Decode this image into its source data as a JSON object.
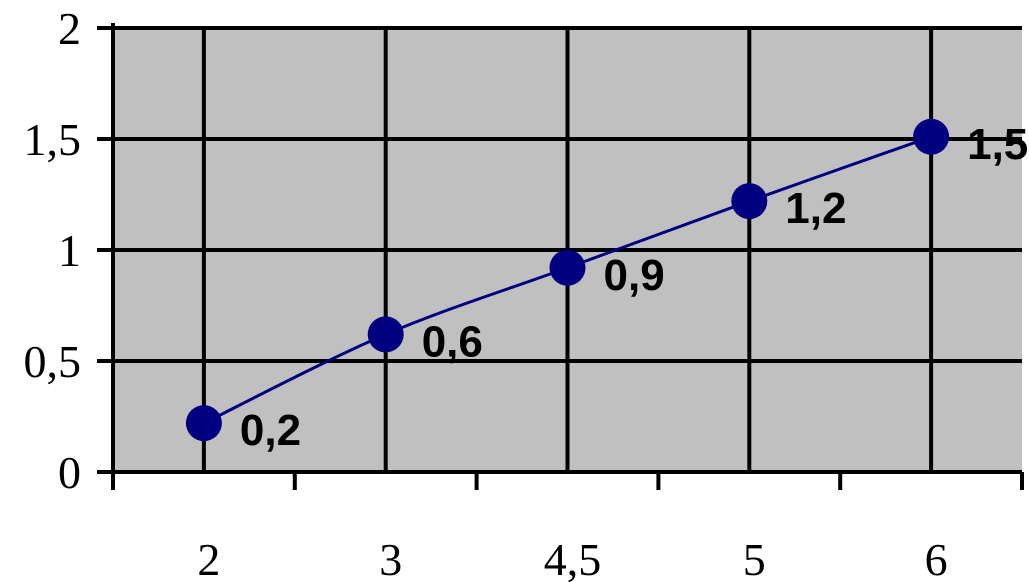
{
  "chart_data": {
    "type": "line",
    "categories": [
      "2",
      "3",
      "4,5",
      "5",
      "6"
    ],
    "values": [
      0.22,
      0.62,
      0.92,
      1.22,
      1.51
    ],
    "data_labels": [
      "0,2",
      "0,6",
      "0,9",
      "1,2",
      "1,5"
    ],
    "y_ticks": [
      {
        "value": 0,
        "label": "0"
      },
      {
        "value": 0.5,
        "label": "0,5"
      },
      {
        "value": 1,
        "label": "1"
      },
      {
        "value": 1.5,
        "label": "1,5"
      },
      {
        "value": 2,
        "label": "2"
      }
    ],
    "ylim": [
      0,
      2
    ],
    "grid": true,
    "legend": "none",
    "colors": {
      "plot_background": "#c0c0c0",
      "grid": "#000000",
      "line": "#000080",
      "marker": "#000080"
    }
  }
}
